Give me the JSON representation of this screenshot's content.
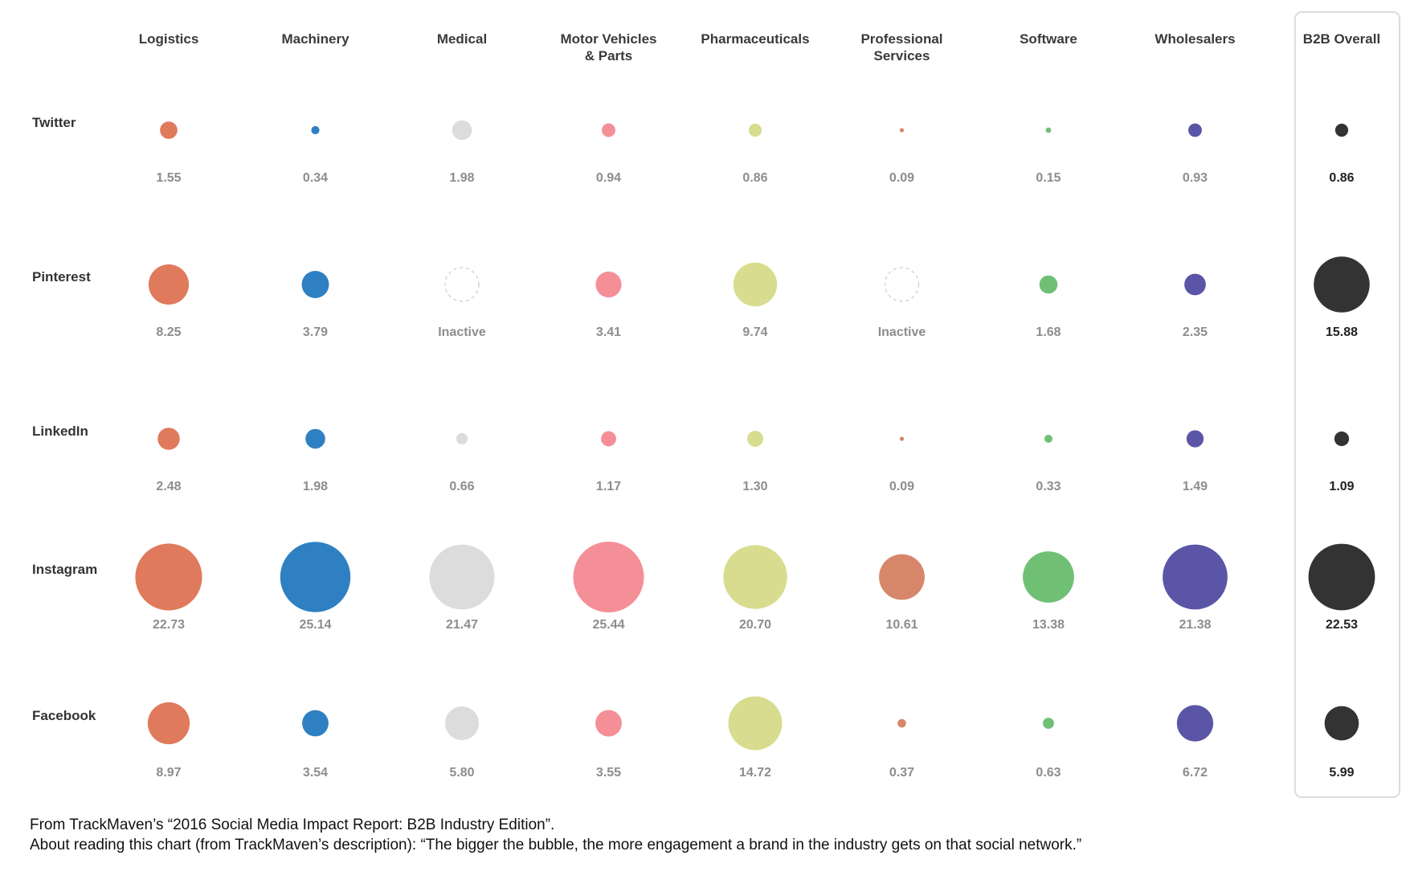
{
  "chart_data": {
    "type": "bubble-grid",
    "columns": [
      {
        "lines": [
          "Logistics"
        ],
        "color": "#e07a5c"
      },
      {
        "lines": [
          "Machinery"
        ],
        "color": "#2f80c3"
      },
      {
        "lines": [
          "Medical"
        ],
        "color": "#dcdcdc"
      },
      {
        "lines": [
          "Motor Vehicles",
          "& Parts"
        ],
        "color": "#f48f98"
      },
      {
        "lines": [
          "Pharmaceuticals"
        ],
        "color": "#d8dc8e"
      },
      {
        "lines": [
          "Professional",
          "Services"
        ],
        "color": "#d6876a"
      },
      {
        "lines": [
          "Software"
        ],
        "color": "#6fc075"
      },
      {
        "lines": [
          "Wholesalers"
        ],
        "color": "#5a55a6"
      },
      {
        "lines": [
          "B2B Overall"
        ],
        "color": "#333333",
        "highlight": true
      }
    ],
    "rows": [
      {
        "name": "Twitter",
        "values": [
          1.55,
          0.34,
          1.98,
          0.94,
          0.86,
          0.09,
          0.15,
          0.93,
          0.86
        ],
        "labels": [
          "1.55",
          "0.34",
          "1.98",
          "0.94",
          "0.86",
          "0.09",
          "0.15",
          "0.93",
          "0.86"
        ]
      },
      {
        "name": "Pinterest",
        "values": [
          8.25,
          3.79,
          null,
          3.41,
          9.74,
          null,
          1.68,
          2.35,
          15.88
        ],
        "labels": [
          "8.25",
          "3.79",
          "Inactive",
          "3.41",
          "9.74",
          "Inactive",
          "1.68",
          "2.35",
          "15.88"
        ]
      },
      {
        "name": "LinkedIn",
        "values": [
          2.48,
          1.98,
          0.66,
          1.17,
          1.3,
          0.09,
          0.33,
          1.49,
          1.09
        ],
        "labels": [
          "2.48",
          "1.98",
          "0.66",
          "1.17",
          "1.30",
          "0.09",
          "0.33",
          "1.49",
          "1.09"
        ]
      },
      {
        "name": "Instagram",
        "values": [
          22.73,
          25.14,
          21.47,
          25.44,
          20.7,
          10.61,
          13.38,
          21.38,
          22.53
        ],
        "labels": [
          "22.73",
          "25.14",
          "21.47",
          "25.44",
          "20.70",
          "10.61",
          "13.38",
          "21.38",
          "22.53"
        ]
      },
      {
        "name": "Facebook",
        "values": [
          8.97,
          3.54,
          5.8,
          3.55,
          14.72,
          0.37,
          0.63,
          6.72,
          5.99
        ],
        "labels": [
          "8.97",
          "3.54",
          "5.80",
          "3.55",
          "14.72",
          "0.37",
          "0.63",
          "6.72",
          "5.99"
        ]
      }
    ]
  },
  "footnotes": [
    "From TrackMaven’s “2016 Social Media Impact Report: B2B Industry Edition”.",
    "About reading this chart (from TrackMaven’s description): “The bigger the bubble, the more engagement a brand in the industry gets on that social network.”"
  ]
}
